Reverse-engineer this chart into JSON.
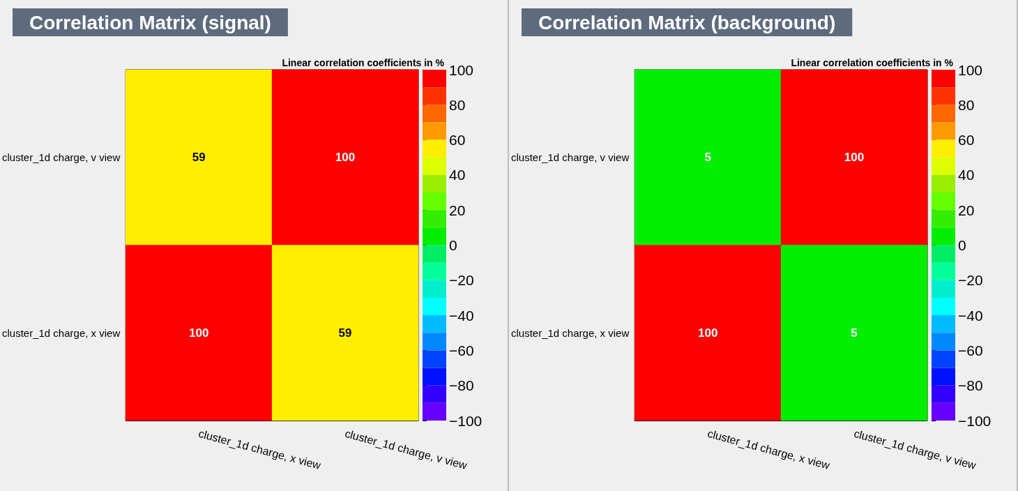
{
  "chart_data": [
    {
      "type": "heatmap",
      "title": "Correlation Matrix (signal)",
      "clabel": "Linear correlation coefficients in %",
      "categories": [
        "cluster_1d charge, x view",
        "cluster_1d charge, v view"
      ],
      "y_categories": [
        "cluster_1d charge, v view",
        "cluster_1d charge, x view"
      ],
      "cells": [
        [
          59,
          100
        ],
        [
          100,
          59
        ]
      ],
      "clim": [
        -100,
        100
      ],
      "cticks": [
        -100,
        -80,
        -60,
        -40,
        -20,
        0,
        20,
        40,
        60,
        80,
        100
      ],
      "data_labels": true
    },
    {
      "type": "heatmap",
      "title": "Correlation Matrix (background)",
      "clabel": "Linear correlation coefficients in %",
      "categories": [
        "cluster_1d charge, x view",
        "cluster_1d charge, v view"
      ],
      "y_categories": [
        "cluster_1d charge, v view",
        "cluster_1d charge, x view"
      ],
      "cells": [
        [
          5,
          100
        ],
        [
          100,
          5
        ]
      ],
      "clim": [
        -100,
        100
      ],
      "cticks": [
        -100,
        -80,
        -60,
        -40,
        -20,
        0,
        20,
        40,
        60,
        80,
        100
      ],
      "data_labels": true
    }
  ]
}
